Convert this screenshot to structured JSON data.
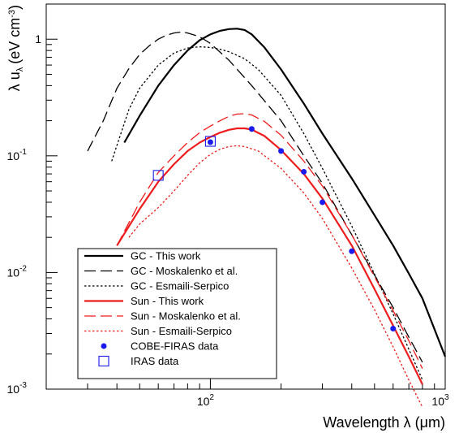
{
  "chart_data": {
    "type": "line",
    "xlabel": "Wavelength λ (μm)",
    "ylabel": "λ u",
    "ylabel_subscript": "λ",
    "ylabel_units": "(eV cm",
    "ylabel_units_sup": "-3",
    "ylabel_units_close": ")",
    "x_scale": "log",
    "y_scale": "log",
    "xlim": [
      20,
      1000
    ],
    "ylim": [
      0.001,
      2
    ],
    "x_tick_labels": [
      {
        "value": 100,
        "base": "10",
        "exp": "2"
      },
      {
        "value": 1000,
        "base": "10",
        "exp": "3"
      }
    ],
    "y_tick_labels": [
      {
        "value": 0.001,
        "base": "10",
        "exp": "-3"
      },
      {
        "value": 0.01,
        "base": "10",
        "exp": "-2"
      },
      {
        "value": 0.1,
        "base": "10",
        "exp": "-1"
      },
      {
        "value": 1,
        "base": "1",
        "exp": ""
      }
    ],
    "grid": false,
    "legend_position": "bottom-left",
    "series": [
      {
        "name": "GC - This work",
        "color": "#000000",
        "style": "solid",
        "width": 2.2,
        "x": [
          43,
          50,
          60,
          70,
          80,
          90,
          100,
          110,
          120,
          130,
          140,
          150,
          170,
          200,
          250,
          300,
          400,
          500,
          600,
          700,
          800,
          1000
        ],
        "y": [
          0.13,
          0.22,
          0.4,
          0.6,
          0.8,
          0.98,
          1.1,
          1.18,
          1.22,
          1.23,
          1.2,
          1.1,
          0.85,
          0.55,
          0.28,
          0.155,
          0.064,
          0.031,
          0.017,
          0.0098,
          0.006,
          0.0019
        ]
      },
      {
        "name": "GC - Moskalenko et al.",
        "color": "#000000",
        "style": "longdash",
        "width": 1.3,
        "x": [
          30,
          35,
          40,
          45,
          50,
          55,
          60,
          65,
          70,
          75,
          80,
          90,
          100,
          120,
          150,
          200,
          250,
          300,
          400,
          500,
          600,
          700,
          800
        ],
        "y": [
          0.11,
          0.2,
          0.38,
          0.56,
          0.74,
          0.88,
          1.0,
          1.08,
          1.13,
          1.15,
          1.13,
          1.05,
          0.92,
          0.66,
          0.4,
          0.2,
          0.1,
          0.058,
          0.021,
          0.0095,
          0.005,
          0.0028,
          0.0017
        ]
      },
      {
        "name": "GC - Esmaili-Serpico",
        "color": "#000000",
        "style": "dotted",
        "width": 1.3,
        "x": [
          38,
          45,
          50,
          60,
          70,
          80,
          90,
          100,
          110,
          120,
          140,
          160,
          200,
          250,
          300,
          400,
          500,
          600,
          700,
          800
        ],
        "y": [
          0.09,
          0.25,
          0.38,
          0.6,
          0.76,
          0.84,
          0.86,
          0.85,
          0.82,
          0.78,
          0.68,
          0.55,
          0.33,
          0.155,
          0.078,
          0.025,
          0.0097,
          0.0044,
          0.0022,
          0.0012
        ]
      },
      {
        "name": "Sun - This work",
        "color": "#ee1c1c",
        "style": "solid",
        "width": 2.2,
        "x": [
          40,
          50,
          60,
          70,
          80,
          90,
          100,
          110,
          120,
          130,
          140,
          150,
          170,
          200,
          250,
          300,
          400,
          500,
          600,
          700,
          800
        ],
        "y": [
          0.017,
          0.035,
          0.06,
          0.085,
          0.11,
          0.13,
          0.145,
          0.158,
          0.167,
          0.172,
          0.172,
          0.168,
          0.148,
          0.112,
          0.07,
          0.043,
          0.017,
          0.0072,
          0.0035,
          0.0019,
          0.0011
        ]
      },
      {
        "name": "Sun - Moskalenko et al.",
        "color": "#ee1c1c",
        "style": "longdash",
        "width": 1.3,
        "x": [
          40,
          50,
          60,
          70,
          80,
          90,
          100,
          110,
          120,
          130,
          140,
          150,
          170,
          200,
          250,
          300,
          400,
          500,
          600,
          700,
          800
        ],
        "y": [
          0.017,
          0.04,
          0.072,
          0.1,
          0.13,
          0.158,
          0.18,
          0.2,
          0.218,
          0.228,
          0.23,
          0.224,
          0.197,
          0.15,
          0.09,
          0.055,
          0.021,
          0.0092,
          0.0047,
          0.0026,
          0.0015
        ]
      },
      {
        "name": "Sun - Esmaili-Serpico",
        "color": "#ee1c1c",
        "style": "dotted",
        "width": 1.3,
        "x": [
          45,
          50,
          60,
          70,
          80,
          90,
          100,
          110,
          120,
          130,
          140,
          160,
          200,
          250,
          300,
          400,
          500,
          600,
          700,
          800
        ],
        "y": [
          0.02,
          0.026,
          0.036,
          0.05,
          0.068,
          0.087,
          0.103,
          0.114,
          0.12,
          0.122,
          0.12,
          0.11,
          0.078,
          0.048,
          0.029,
          0.0109,
          0.0048,
          0.0023,
          0.0012,
          0.0007
        ]
      }
    ],
    "markers": [
      {
        "name": "COBE-FIRAS data",
        "shape": "dot",
        "color": "#1a1aee",
        "x": [
          100,
          150,
          200,
          250,
          300,
          400,
          600
        ],
        "y": [
          0.131,
          0.17,
          0.11,
          0.073,
          0.04,
          0.0152,
          0.0033
        ]
      },
      {
        "name": "IRAS data",
        "shape": "open-square",
        "color": "#1a1aee",
        "x": [
          60,
          100
        ],
        "y": [
          0.068,
          0.133
        ]
      }
    ]
  }
}
